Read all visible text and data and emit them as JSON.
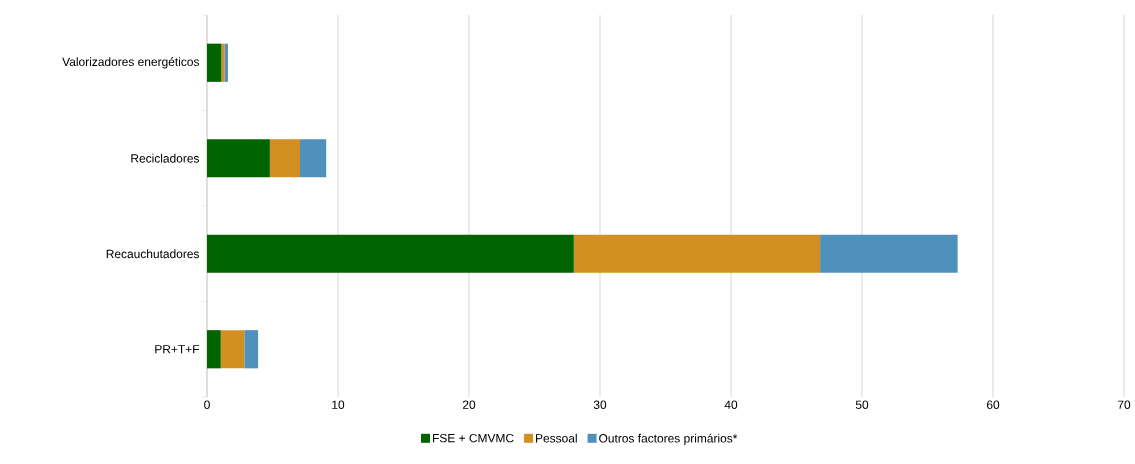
{
  "chart_data": {
    "type": "bar",
    "orientation": "horizontal",
    "stacked": true,
    "categories": [
      "Valorizadores energéticos",
      "Recicladores",
      "Recauchutadores",
      "PR+T+F"
    ],
    "series": [
      {
        "name": "FSE + CMVMC",
        "color": "#006400",
        "values": [
          1.1,
          4.8,
          28.0,
          1.05
        ]
      },
      {
        "name": "Pessoal",
        "color": "#d38f22",
        "values": [
          0.25,
          2.3,
          18.8,
          1.8
        ]
      },
      {
        "name": "Outros factores primários*",
        "color": "#5090bd",
        "values": [
          0.25,
          2.0,
          10.5,
          1.05
        ]
      }
    ],
    "xlim": [
      0,
      70
    ],
    "xticks": [
      0,
      10,
      20,
      30,
      40,
      50,
      60,
      70
    ],
    "grid": "x",
    "legend": "bottom"
  }
}
